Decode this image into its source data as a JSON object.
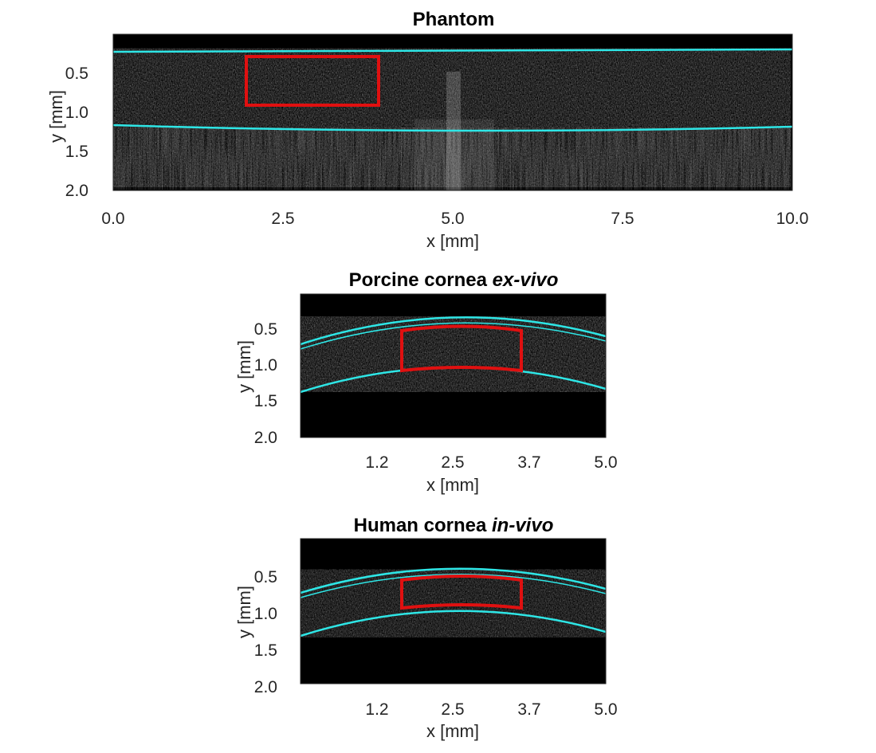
{
  "colors": {
    "boundary": "#2ee6e6",
    "roi": "#e01010",
    "image_bg": "#000000",
    "axis": "#262626"
  },
  "panels": [
    {
      "title": "Phantom",
      "title_italic": "",
      "xlabel": "x [mm]",
      "ylabel": "y [mm]",
      "xlim": [
        0,
        10
      ],
      "ylim": [
        2.0,
        0.0
      ],
      "xticks": [
        "0.0",
        "2.5",
        "5.0",
        "7.5",
        "10.0"
      ],
      "yticks": [
        "0.5",
        "1.0",
        "1.5",
        "2.0"
      ],
      "upper_boundary": [
        [
          0,
          0.22
        ],
        [
          10,
          0.2
        ]
      ],
      "lower_boundary": [
        [
          0,
          1.17
        ],
        [
          5,
          1.22
        ],
        [
          10,
          1.18
        ]
      ],
      "roi": {
        "x": [
          1.95,
          3.9
        ],
        "y": [
          0.28,
          0.9
        ]
      }
    },
    {
      "title": "Porcine cornea",
      "title_italic": "ex-vivo",
      "xlabel": "x [mm]",
      "ylabel": "y [mm]",
      "xlim": [
        0,
        5
      ],
      "ylim": [
        2.0,
        0.0
      ],
      "xticks": [
        "1.2",
        "2.5",
        "3.7",
        "5.0"
      ],
      "yticks": [
        "0.5",
        "1.0",
        "1.5",
        "2.0"
      ],
      "upper_boundary": [
        [
          0,
          0.78
        ],
        [
          2.5,
          0.4
        ],
        [
          5,
          0.62
        ]
      ],
      "lower_boundary": [
        [
          0,
          1.38
        ],
        [
          2.5,
          1.07
        ],
        [
          5,
          1.34
        ]
      ],
      "roi": {
        "x": [
          1.6,
          3.6
        ],
        "y": [
          0.48,
          1.05
        ]
      }
    },
    {
      "title": "Human cornea",
      "title_italic": "in-vivo",
      "xlabel": "x [mm]",
      "ylabel": "y [mm]",
      "xlim": [
        0,
        5
      ],
      "ylim": [
        2.0,
        0.0
      ],
      "xticks": [
        "1.2",
        "2.5",
        "3.7",
        "5.0"
      ],
      "yticks": [
        "0.5",
        "1.0",
        "1.5",
        "2.0"
      ],
      "upper_boundary": [
        [
          0,
          0.78
        ],
        [
          2.5,
          0.38
        ],
        [
          5,
          0.68
        ]
      ],
      "lower_boundary": [
        [
          0,
          1.32
        ],
        [
          2.5,
          0.92
        ],
        [
          5,
          1.28
        ]
      ],
      "roi": {
        "x": [
          1.6,
          3.6
        ],
        "y": [
          0.5,
          0.9
        ]
      }
    }
  ]
}
